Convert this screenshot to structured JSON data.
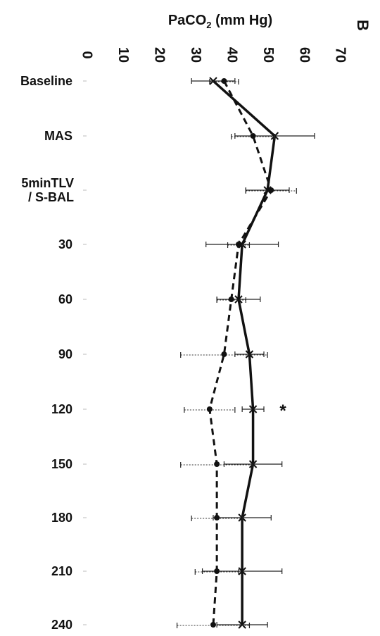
{
  "chart_data": {
    "type": "line",
    "panel_label": "B",
    "axis_title_base": "PaCO",
    "axis_title_sub": "2",
    "axis_title_unit": " (mm Hg)",
    "value_axis": {
      "min": 0,
      "max": 70,
      "ticks": [
        "0",
        "10",
        "20",
        "30",
        "40",
        "50",
        "60",
        "70"
      ]
    },
    "categories": [
      "Baseline",
      "MAS",
      "5minTLV / S-BAL",
      "30",
      "60",
      "90",
      "120",
      "150",
      "180",
      "210",
      "240"
    ],
    "category_lines": [
      [
        "Baseline"
      ],
      [
        "MAS"
      ],
      [
        "5minTLV",
        "/ S-BAL"
      ],
      [
        "30"
      ],
      [
        "60"
      ],
      [
        "90"
      ],
      [
        "120"
      ],
      [
        "150"
      ],
      [
        "180"
      ],
      [
        "210"
      ],
      [
        "240"
      ]
    ],
    "series": [
      {
        "style": "solid",
        "marker": "x",
        "values": [
          35,
          52,
          50,
          43,
          42,
          45,
          46,
          46,
          43,
          43,
          43
        ],
        "error": [
          6,
          11,
          6,
          10,
          6,
          4,
          3,
          8,
          8,
          11,
          7
        ]
      },
      {
        "style": "dashed",
        "marker": "dot",
        "values": [
          38,
          46,
          51,
          42,
          40,
          38,
          34,
          36,
          36,
          36,
          35
        ],
        "error": [
          4,
          6,
          7,
          3,
          4,
          12,
          7,
          10,
          7,
          6,
          10
        ]
      }
    ],
    "annotations": [
      {
        "category": "120",
        "text": "*"
      }
    ],
    "grid": false
  }
}
